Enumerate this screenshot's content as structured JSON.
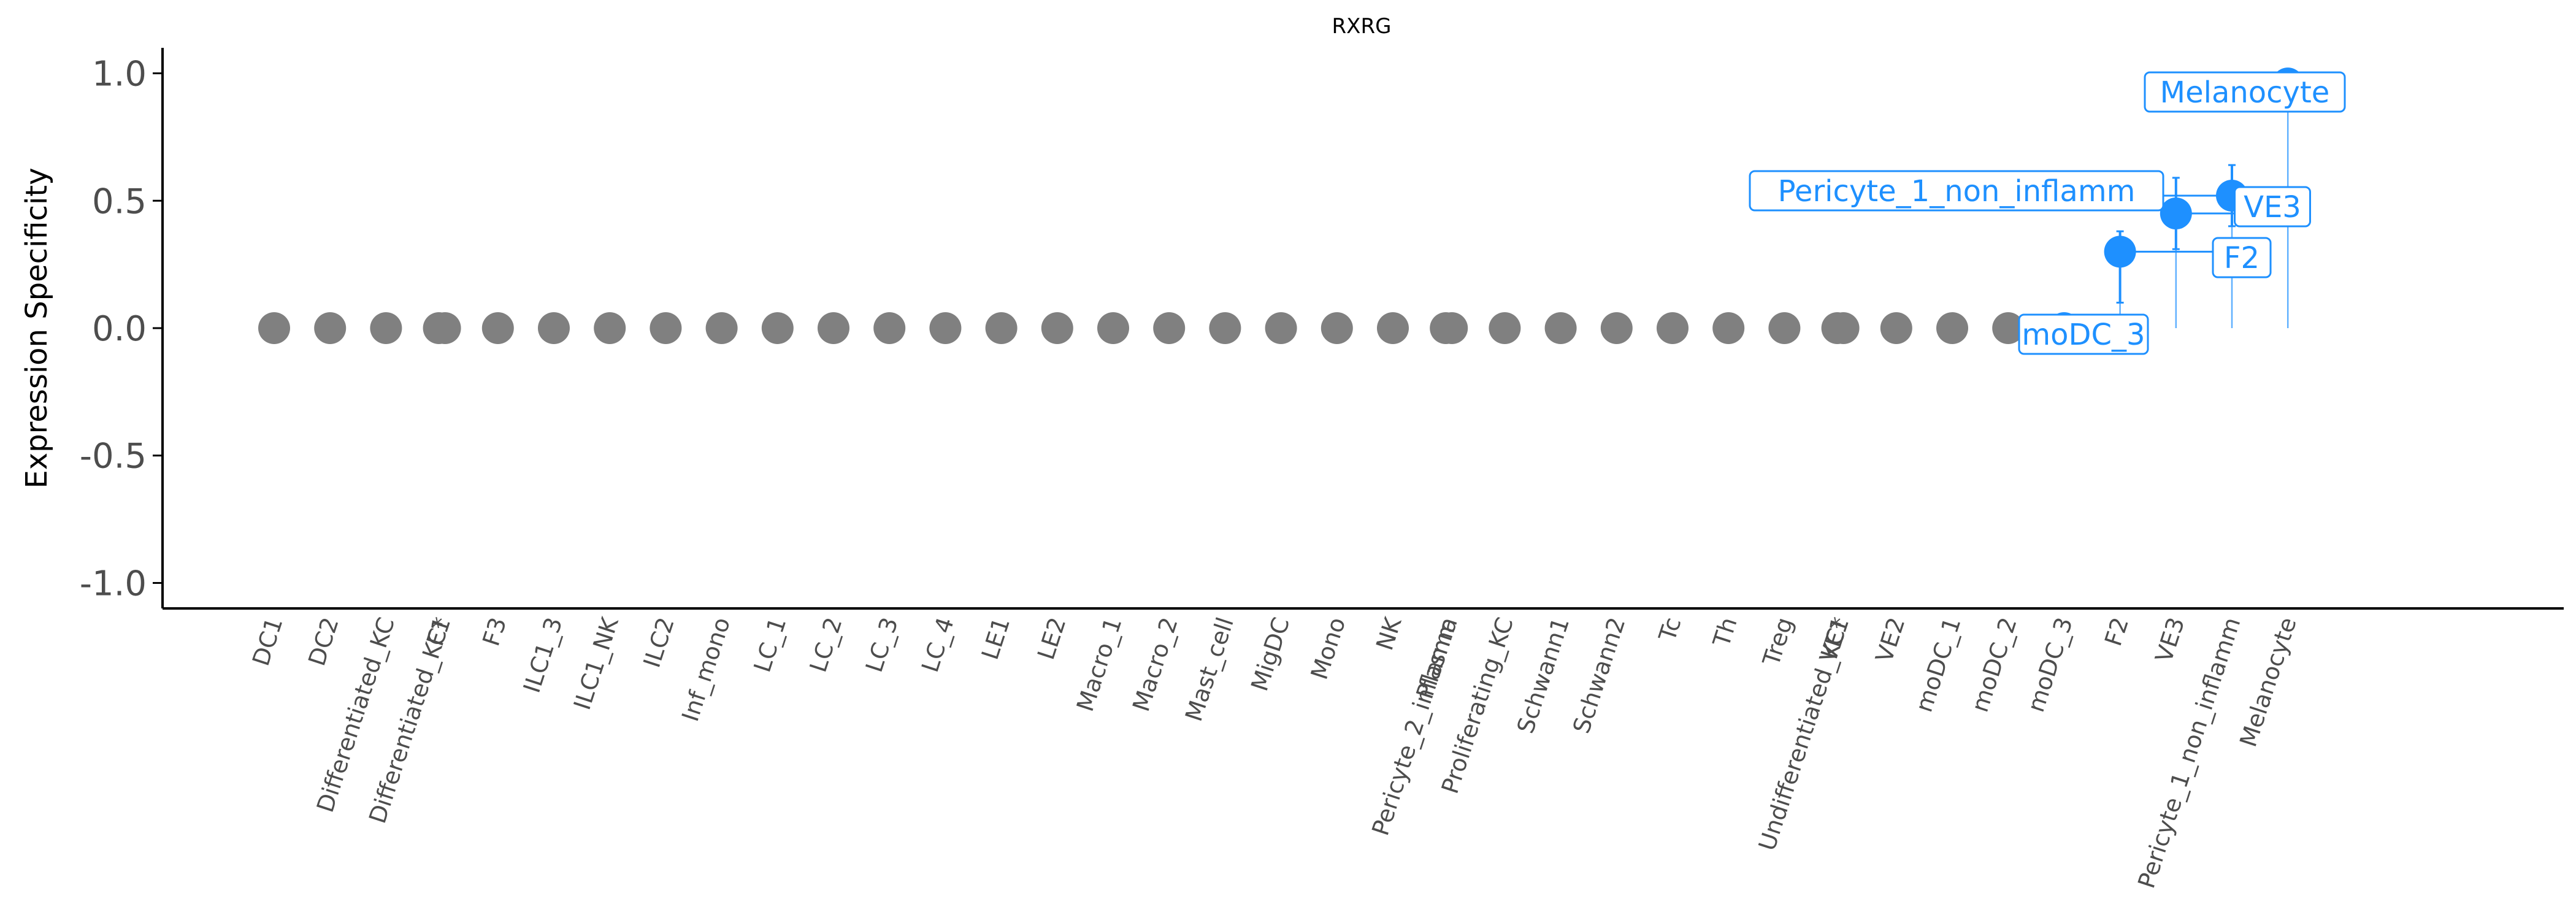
{
  "chart_data": {
    "type": "scatter",
    "title": "RXRG",
    "ylabel": "Expression Specificity",
    "xlabel": "",
    "ylim": [
      -1.1,
      1.1
    ],
    "yticks": [
      1.0,
      0.5,
      0.0,
      -0.5,
      -1.0
    ],
    "ytick_labels": [
      "1.0",
      "0.5",
      "0.0",
      "-0.5",
      "-1.0"
    ],
    "grid": false,
    "legend": "none",
    "colors": {
      "default": "#808080",
      "highlight": "#1e90ff",
      "axis": "#000000"
    },
    "categories": [
      "DC1",
      "DC2",
      "Differentiated_KC",
      "Differentiated_KC*",
      "F1",
      "F3",
      "ILC1_3",
      "ILC1_NK",
      "ILC2",
      "Inf_mono",
      "LC_1",
      "LC_2",
      "LC_3",
      "LC_4",
      "LE1",
      "LE2",
      "Macro_1",
      "Macro_2",
      "Mast_cell",
      "MigDC",
      "Mono",
      "NK",
      "Pericyte_2_inflamm",
      "Plasma",
      "Proliferating_KC",
      "Schwann1",
      "Schwann2",
      "Tc",
      "Th",
      "Treg",
      "Undifferentiated_KC*",
      "VE1",
      "VE2",
      "moDC_1",
      "moDC_2",
      "moDC_3",
      "F2",
      "VE3",
      "Pericyte_1_non_inflamm",
      "Melanocyte"
    ],
    "points": [
      {
        "label": "DC1",
        "tick_x": 0,
        "y": 0.0
      },
      {
        "label": "DC2",
        "tick_x": 1,
        "y": 0.0
      },
      {
        "label": "Differentiated_KC",
        "tick_x": 2,
        "y": 0.0
      },
      {
        "label": "Differentiated_KC*",
        "tick_x": 3,
        "y": 0.0
      },
      {
        "label": "F1",
        "tick_x": 3,
        "y": 0.0
      },
      {
        "label": "F3",
        "tick_x": 4,
        "y": 0.0
      },
      {
        "label": "ILC1_3",
        "tick_x": 5,
        "y": 0.0
      },
      {
        "label": "ILC1_NK",
        "tick_x": 6,
        "y": 0.0
      },
      {
        "label": "ILC2",
        "tick_x": 7,
        "y": 0.0
      },
      {
        "label": "Inf_mono",
        "tick_x": 8,
        "y": 0.0
      },
      {
        "label": "LC_1",
        "tick_x": 9,
        "y": 0.0
      },
      {
        "label": "LC_2",
        "tick_x": 10,
        "y": 0.0
      },
      {
        "label": "LC_3",
        "tick_x": 11,
        "y": 0.0
      },
      {
        "label": "LC_4",
        "tick_x": 12,
        "y": 0.0
      },
      {
        "label": "LE1",
        "tick_x": 13,
        "y": 0.0
      },
      {
        "label": "LE2",
        "tick_x": 14,
        "y": 0.0
      },
      {
        "label": "Macro_1",
        "tick_x": 15,
        "y": 0.0
      },
      {
        "label": "Macro_2",
        "tick_x": 16,
        "y": 0.0
      },
      {
        "label": "Mast_cell",
        "tick_x": 17,
        "y": 0.0
      },
      {
        "label": "MigDC",
        "tick_x": 18,
        "y": 0.0
      },
      {
        "label": "Mono",
        "tick_x": 19,
        "y": 0.0
      },
      {
        "label": "NK",
        "tick_x": 20,
        "y": 0.0
      },
      {
        "label": "Pericyte_2_inflamm",
        "tick_x": 21,
        "y": 0.0
      },
      {
        "label": "Plasma",
        "tick_x": 21,
        "y": 0.0
      },
      {
        "label": "Proliferating_KC",
        "tick_x": 22,
        "y": 0.0
      },
      {
        "label": "Schwann1",
        "tick_x": 23,
        "y": 0.0
      },
      {
        "label": "Schwann2",
        "tick_x": 24,
        "y": 0.0
      },
      {
        "label": "Tc",
        "tick_x": 25,
        "y": 0.0
      },
      {
        "label": "Th",
        "tick_x": 26,
        "y": 0.0
      },
      {
        "label": "Treg",
        "tick_x": 27,
        "y": 0.0
      },
      {
        "label": "Undifferentiated_KC*",
        "tick_x": 28,
        "y": 0.0
      },
      {
        "label": "VE1",
        "tick_x": 28,
        "y": 0.0
      },
      {
        "label": "VE2",
        "tick_x": 29,
        "y": 0.0
      },
      {
        "label": "moDC_1",
        "tick_x": 30,
        "y": 0.0
      },
      {
        "label": "moDC_2",
        "tick_x": 31,
        "y": 0.0
      },
      {
        "label": "moDC_3",
        "tick_x": 32,
        "y": 0.0,
        "highlight": true
      },
      {
        "label": "F2",
        "tick_x": 33,
        "y": 0.3,
        "err": [
          0.1,
          0.38
        ],
        "highlight": true
      },
      {
        "label": "VE3",
        "tick_x": 34,
        "y": 0.45,
        "err": [
          0.31,
          0.59
        ],
        "highlight": true
      },
      {
        "label": "Pericyte_1_non_inflamm",
        "tick_x": 35,
        "y": 0.52,
        "err": [
          0.4,
          0.64
        ],
        "highlight": true
      },
      {
        "label": "Melanocyte",
        "tick_x": 36,
        "y": 0.96,
        "highlight": true
      }
    ],
    "annotations": [
      "Melanocyte",
      "Pericyte_1_non_inflamm",
      "VE3",
      "F2",
      "moDC_3"
    ]
  }
}
